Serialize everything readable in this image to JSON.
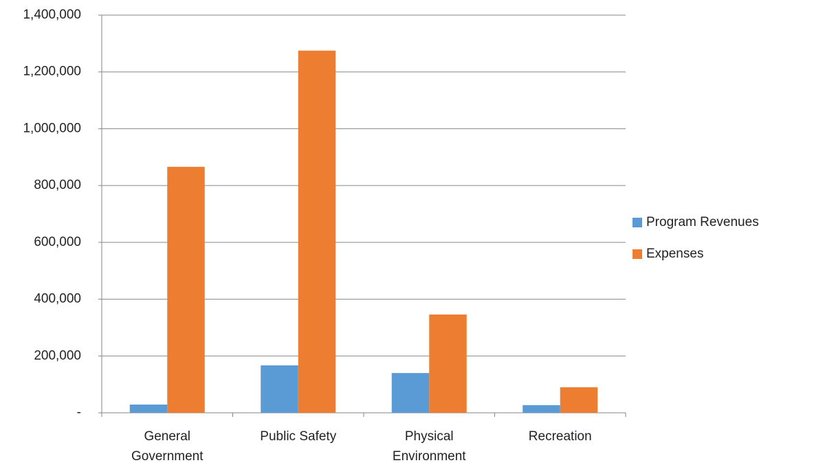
{
  "chart_data": {
    "type": "bar",
    "categories": [
      "General Government",
      "Public Safety",
      "Physical Environment",
      "Recreation"
    ],
    "series": [
      {
        "name": "Program Revenues",
        "color": "#5b9bd5",
        "values": [
          29000,
          167000,
          140000,
          27000
        ]
      },
      {
        "name": "Expenses",
        "color": "#ed7d31",
        "values": [
          866000,
          1275000,
          346000,
          90000
        ]
      }
    ],
    "ylim": [
      0,
      1400000
    ],
    "yticks": [
      {
        "value": 0,
        "label": "-"
      },
      {
        "value": 200000,
        "label": "200,000"
      },
      {
        "value": 400000,
        "label": "400,000"
      },
      {
        "value": 600000,
        "label": "600,000"
      },
      {
        "value": 800000,
        "label": "800,000"
      },
      {
        "value": 1000000,
        "label": "1,000,000"
      },
      {
        "value": 1200000,
        "label": "1,200,000"
      },
      {
        "value": 1400000,
        "label": "1,400,000"
      }
    ],
    "grid": true,
    "legend": "right"
  }
}
